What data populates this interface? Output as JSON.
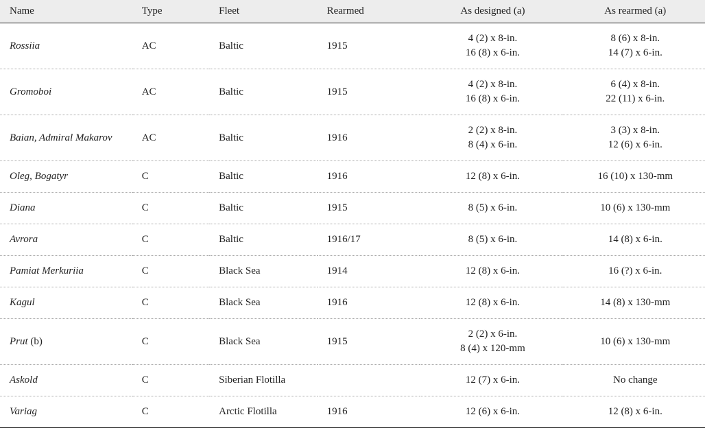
{
  "table": {
    "columns": [
      {
        "key": "name",
        "label": "Name"
      },
      {
        "key": "type",
        "label": "Type"
      },
      {
        "key": "fleet",
        "label": "Fleet"
      },
      {
        "key": "rearmed",
        "label": "Rearmed"
      },
      {
        "key": "designed",
        "label": "As designed (a)"
      },
      {
        "key": "rearmed_a",
        "label": "As rearmed (a)"
      }
    ],
    "rows": [
      {
        "name": "Rossiia",
        "name_suffix": "",
        "type": "AC",
        "fleet": "Baltic",
        "rearmed": "1915",
        "designed": [
          "4 (2) x 8-in.",
          "16 (8) x 6-in."
        ],
        "rearmed_a": [
          "8 (6) x 8-in.",
          "14 (7) x 6-in."
        ]
      },
      {
        "name": "Gromoboi",
        "name_suffix": "",
        "type": "AC",
        "fleet": "Baltic",
        "rearmed": "1915",
        "designed": [
          "4 (2) x 8-in.",
          "16 (8) x 6-in."
        ],
        "rearmed_a": [
          "6 (4) x 8-in.",
          "22 (11) x 6-in."
        ]
      },
      {
        "name": "Baian, Admiral Makarov",
        "name_suffix": "",
        "type": "AC",
        "fleet": "Baltic",
        "rearmed": "1916",
        "designed": [
          "2 (2) x 8-in.",
          "8 (4) x 6-in."
        ],
        "rearmed_a": [
          "3 (3) x 8-in.",
          "12 (6) x 6-in."
        ]
      },
      {
        "name": "Oleg, Bogatyr",
        "name_suffix": "",
        "type": "C",
        "fleet": "Baltic",
        "rearmed": "1916",
        "designed": [
          "12 (8) x 6-in."
        ],
        "rearmed_a": [
          "16 (10) x 130-mm"
        ]
      },
      {
        "name": "Diana",
        "name_suffix": "",
        "type": "C",
        "fleet": "Baltic",
        "rearmed": "1915",
        "designed": [
          "8 (5) x 6-in."
        ],
        "rearmed_a": [
          "10 (6) x 130-mm"
        ]
      },
      {
        "name": "Avrora",
        "name_suffix": "",
        "type": "C",
        "fleet": "Baltic",
        "rearmed": "1916/17",
        "designed": [
          "8 (5) x 6-in."
        ],
        "rearmed_a": [
          "14 (8) x 6-in."
        ]
      },
      {
        "name": "Pamiat Merkuriia",
        "name_suffix": "",
        "type": "C",
        "fleet": "Black Sea",
        "rearmed": "1914",
        "designed": [
          "12 (8) x 6-in."
        ],
        "rearmed_a": [
          "16 (?) x 6-in."
        ]
      },
      {
        "name": "Kagul",
        "name_suffix": "",
        "type": "C",
        "fleet": "Black Sea",
        "rearmed": "1916",
        "designed": [
          "12 (8) x 6-in."
        ],
        "rearmed_a": [
          "14 (8) x 130-mm"
        ]
      },
      {
        "name": "Prut",
        "name_suffix": " (b)",
        "type": "C",
        "fleet": "Black Sea",
        "rearmed": "1915",
        "designed": [
          "2 (2) x 6-in.",
          "8 (4) x 120-mm"
        ],
        "rearmed_a": [
          "10 (6) x 130-mm"
        ]
      },
      {
        "name": "Askold",
        "name_suffix": "",
        "type": "C",
        "fleet": "Siberian Flotilla",
        "rearmed": "",
        "designed": [
          "12 (7) x 6-in."
        ],
        "rearmed_a": [
          "No change"
        ]
      },
      {
        "name": "Variag",
        "name_suffix": "",
        "type": "C",
        "fleet": "Arctic Flotilla",
        "rearmed": "1916",
        "designed": [
          "12 (6) x 6-in."
        ],
        "rearmed_a": [
          "12 (8) x 6-in."
        ]
      }
    ]
  }
}
